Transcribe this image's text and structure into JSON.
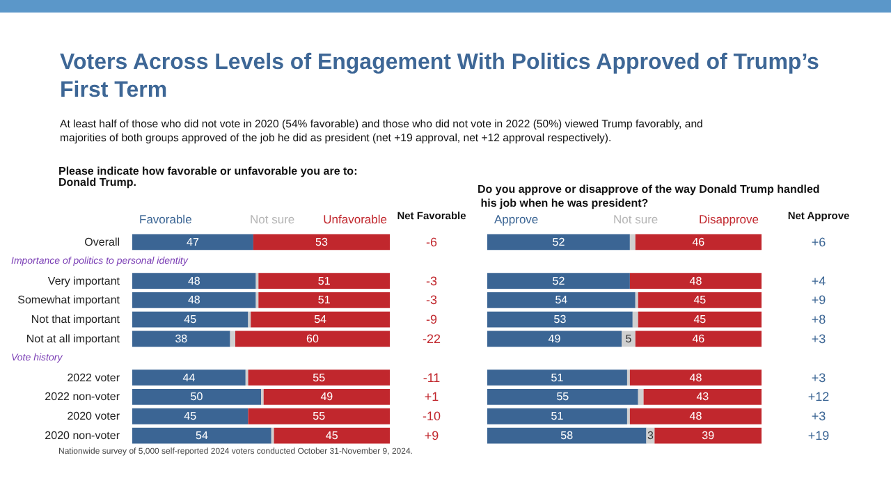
{
  "chart_data": [
    {
      "type": "bar",
      "orientation": "horizontal",
      "stacked": true,
      "title": "Voters Across Levels of Engagement With Politics Approved of Trump’s First Term",
      "subtitle": "At least half of those who did not vote in 2020 (54% favorable) and those who did not vote in 2022 (50%) viewed Trump favorably, and majorities of both groups approved of the job he did as president (net +19 approval, net +12 approval respectively).",
      "categories": [
        "Overall",
        null,
        "Very important",
        "Somewhat important",
        "Not that important",
        "Not at all important",
        null,
        "2022 voter",
        "2022 non-voter",
        "2020 voter",
        "2020 non-voter"
      ],
      "series": [
        {
          "name": "Favorable",
          "color": "#3b6594",
          "values": [
            47,
            null,
            48,
            48,
            45,
            38,
            null,
            44,
            50,
            45,
            54
          ],
          "value_labels": [
            "47",
            null,
            "48",
            "48",
            "45",
            "38",
            null,
            "44",
            "50",
            "45",
            "54"
          ]
        },
        {
          "name": "Not sure",
          "color": "#d0d0d0",
          "values": [
            0,
            null,
            1,
            1,
            1,
            2,
            null,
            1,
            1,
            0,
            1
          ],
          "value_labels": [
            null,
            null,
            null,
            null,
            null,
            null,
            null,
            null,
            null,
            null,
            null
          ]
        },
        {
          "name": "Unfavorable",
          "color": "#c1272d",
          "values": [
            53,
            null,
            51,
            51,
            54,
            60,
            null,
            55,
            49,
            55,
            45
          ],
          "value_labels": [
            "53",
            null,
            "51",
            "51",
            "54",
            "60",
            null,
            "55",
            "49",
            "55",
            "45"
          ]
        }
      ],
      "xlim": [
        0,
        100
      ],
      "tick_labels": "y",
      "legend": "top",
      "annotations": [
        "Please indicate how favorable or unfavorable you are to: Donald Trump.",
        "Net Favorable",
        "Nationwide survey of 5,000 self-reported 2024 voters conducted October 31-November 9, 2024.",
        "Importance of politics to personal identity",
        "Vote history",
        "-6",
        "-3",
        "-3",
        "-9",
        "-22",
        "-11",
        "+1",
        "-10",
        "+9"
      ]
    },
    {
      "type": "bar",
      "orientation": "horizontal",
      "stacked": true,
      "title": "Do you approve or disapprove of the way Donald Trump handled his job when he was president?",
      "categories": [
        null,
        null,
        null,
        null,
        null,
        null,
        null,
        null,
        null,
        null,
        null
      ],
      "series": [
        {
          "name": "Approve",
          "color": "#3b6594",
          "values": [
            52,
            null,
            52,
            54,
            53,
            49,
            null,
            51,
            55,
            51,
            58
          ],
          "value_labels": [
            "52",
            null,
            "52",
            "54",
            "53",
            "49",
            null,
            "51",
            "55",
            "51",
            "58"
          ]
        },
        {
          "name": "Not sure",
          "color": "#d0d0d0",
          "values": [
            2,
            null,
            0,
            1,
            2,
            5,
            null,
            1,
            2,
            1,
            3
          ],
          "value_labels": [
            null,
            null,
            null,
            null,
            null,
            "5",
            null,
            null,
            null,
            null,
            "3"
          ]
        },
        {
          "name": "Disapprove",
          "color": "#c1272d",
          "values": [
            46,
            null,
            48,
            45,
            45,
            46,
            null,
            48,
            43,
            48,
            39
          ],
          "value_labels": [
            "46",
            null,
            "48",
            "45",
            "45",
            "46",
            null,
            "48",
            "43",
            "48",
            "39"
          ]
        }
      ],
      "xlim": [
        0,
        100
      ],
      "tick_labels": false,
      "legend": "top",
      "annotations": [
        "Net Approve",
        "+6",
        "+4",
        "+9",
        "+8",
        "+3",
        "+3",
        "+12",
        "+3",
        "+19"
      ]
    }
  ]
}
